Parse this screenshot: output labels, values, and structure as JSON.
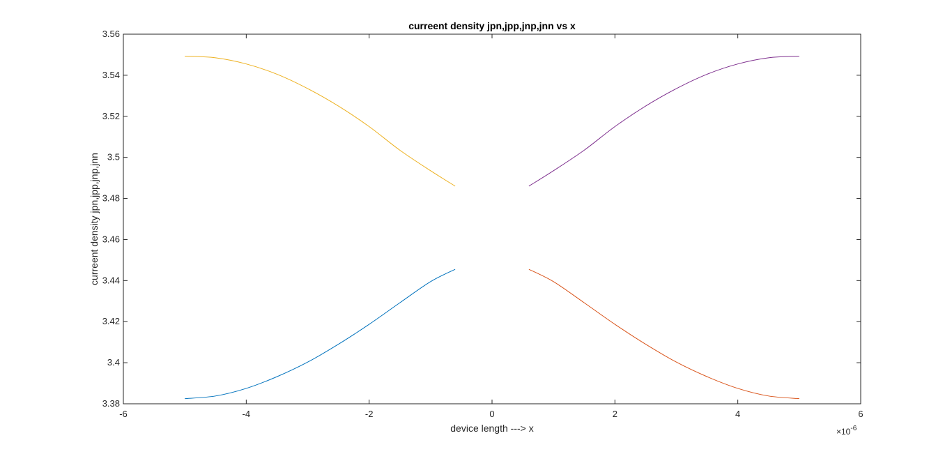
{
  "chart_data": {
    "type": "line",
    "title": "curreent density jpn,jpp,jnp,jnn vs x",
    "xlabel": "device length ---> x",
    "ylabel": "curreent density jpn,jpp,jnp,jnn",
    "x_exponent_base": "×10",
    "x_exponent_power": "-6",
    "xlim": [
      -6,
      6
    ],
    "ylim": [
      3.38,
      3.56
    ],
    "x_ticks": [
      -6,
      -4,
      -2,
      0,
      2,
      4,
      6
    ],
    "x_tick_labels": [
      "-6",
      "-4",
      "-2",
      "0",
      "2",
      "4",
      "6"
    ],
    "y_ticks": [
      3.38,
      3.4,
      3.42,
      3.44,
      3.46,
      3.48,
      3.5,
      3.52,
      3.54,
      3.56
    ],
    "y_tick_labels": [
      "3.38",
      "3.4",
      "3.42",
      "3.44",
      "3.46",
      "3.48",
      "3.5",
      "3.52",
      "3.54",
      "3.56"
    ],
    "grid": false,
    "legend": "none",
    "series": [
      {
        "color": "#0072BD",
        "x": [
          -5.0,
          -4.5,
          -4.0,
          -3.5,
          -3.0,
          -2.5,
          -2.0,
          -1.5,
          -1.0,
          -0.6
        ],
        "y": [
          3.3825,
          3.3838,
          3.3875,
          3.3932,
          3.4003,
          3.409,
          3.4187,
          3.4292,
          3.4395,
          3.4455
        ]
      },
      {
        "color": "#D95319",
        "x": [
          0.6,
          1.0,
          1.5,
          2.0,
          2.5,
          3.0,
          3.5,
          4.0,
          4.5,
          5.0
        ],
        "y": [
          3.4455,
          3.4395,
          3.4292,
          3.4187,
          3.409,
          3.4003,
          3.3932,
          3.3875,
          3.3838,
          3.3825
        ]
      },
      {
        "color": "#EDB120",
        "x": [
          -5.0,
          -4.5,
          -4.0,
          -3.5,
          -3.0,
          -2.5,
          -2.0,
          -1.5,
          -1.0,
          -0.6
        ],
        "y": [
          3.5493,
          3.5485,
          3.5455,
          3.5405,
          3.5335,
          3.525,
          3.515,
          3.5035,
          3.4935,
          3.486
        ]
      },
      {
        "color": "#7E2F8E",
        "x": [
          0.6,
          1.0,
          1.5,
          2.0,
          2.5,
          3.0,
          3.5,
          4.0,
          4.5,
          5.0
        ],
        "y": [
          3.486,
          3.4935,
          3.5035,
          3.515,
          3.525,
          3.5335,
          3.5405,
          3.5455,
          3.5485,
          3.5493
        ]
      }
    ]
  }
}
